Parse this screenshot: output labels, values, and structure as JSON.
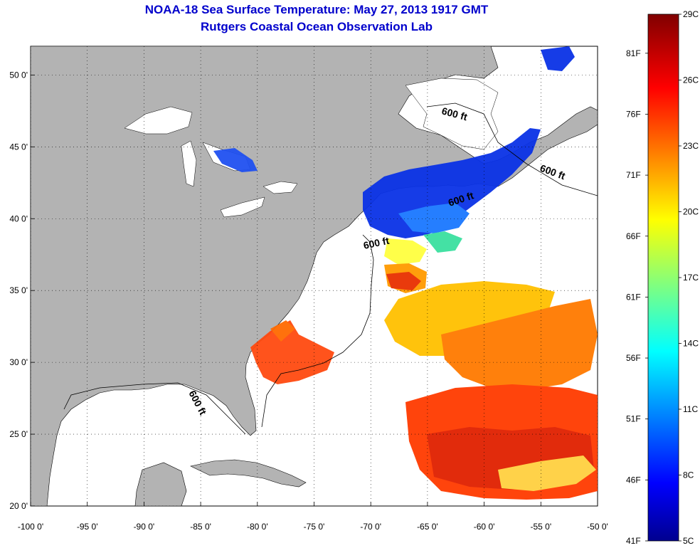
{
  "title": "NOAA-18 Sea Surface Temperature:  May 27, 2013 1917 GMT",
  "subtitle": "Rutgers Coastal Ocean Observation Lab",
  "map": {
    "lon_range": [
      -100,
      -50
    ],
    "lat_range": [
      20,
      52
    ],
    "lon_ticks": [
      "-100 0'",
      "-95 0'",
      "-90 0'",
      "-85 0'",
      "-80 0'",
      "-75 0'",
      "-70 0'",
      "-65 0'",
      "-60 0'",
      "-55 0'",
      "-50 0'"
    ],
    "lat_ticks": [
      "20 0'",
      "25 0'",
      "30 0'",
      "35 0'",
      "40 0'",
      "45 0'",
      "50 0'"
    ],
    "grid": "dotted",
    "contour_labels": [
      "600 ft",
      "600 ft",
      "600 ft",
      "600 ft",
      "600 ft"
    ],
    "land_color": "#b3b3b3"
  },
  "colorbar": {
    "celsius_labels": [
      "29C",
      "26C",
      "23C",
      "20C",
      "17C",
      "14C",
      "11C",
      "8C",
      "5C"
    ],
    "fahrenheit_labels": [
      "81F",
      "76F",
      "71F",
      "66F",
      "61F",
      "56F",
      "51F",
      "46F",
      "41F"
    ],
    "range_c": [
      5,
      29
    ]
  }
}
